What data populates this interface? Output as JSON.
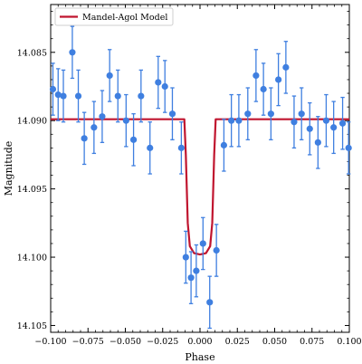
{
  "chart_data": {
    "type": "scatter",
    "xlabel": "Phase",
    "ylabel": "Magnitude",
    "xlim": [
      -0.1,
      0.1
    ],
    "ylim": [
      14.1055,
      14.0815
    ],
    "y_inverted": true,
    "x_ticks": [
      -0.1,
      -0.075,
      -0.05,
      -0.025,
      0.0,
      0.025,
      0.05,
      0.075,
      0.1
    ],
    "x_tick_labels": [
      "−0.100",
      "−0.075",
      "−0.050",
      "−0.025",
      "0.000",
      "0.025",
      "0.050",
      "0.075",
      "0.100"
    ],
    "y_ticks": [
      14.085,
      14.09,
      14.095,
      14.1,
      14.105
    ],
    "y_tick_labels": [
      "14.085",
      "14.090",
      "14.095",
      "14.100",
      "14.105"
    ],
    "legend": {
      "position": "top-left",
      "entries": [
        "Mandel-Agol Model"
      ]
    },
    "colors": {
      "points": "#3f7fe0",
      "model": "#c0152f"
    },
    "series": [
      {
        "name": "Data",
        "kind": "errorbar",
        "points": [
          {
            "x": -0.0985,
            "y": 14.0877,
            "err": 0.0019
          },
          {
            "x": -0.095,
            "y": 14.0881,
            "err": 0.0019
          },
          {
            "x": -0.0915,
            "y": 14.0882,
            "err": 0.0019
          },
          {
            "x": -0.0855,
            "y": 14.085,
            "err": 0.0019
          },
          {
            "x": -0.0815,
            "y": 14.0882,
            "err": 0.0019
          },
          {
            "x": -0.0775,
            "y": 14.0913,
            "err": 0.0019
          },
          {
            "x": -0.071,
            "y": 14.0905,
            "err": 0.0019
          },
          {
            "x": -0.0655,
            "y": 14.0897,
            "err": 0.0019
          },
          {
            "x": -0.0605,
            "y": 14.0867,
            "err": 0.0019
          },
          {
            "x": -0.055,
            "y": 14.0882,
            "err": 0.0019
          },
          {
            "x": -0.0495,
            "y": 14.09,
            "err": 0.0019
          },
          {
            "x": -0.0445,
            "y": 14.0914,
            "err": 0.0019
          },
          {
            "x": -0.0395,
            "y": 14.0882,
            "err": 0.0019
          },
          {
            "x": -0.0335,
            "y": 14.092,
            "err": 0.0019
          },
          {
            "x": -0.028,
            "y": 14.0872,
            "err": 0.0019
          },
          {
            "x": -0.0235,
            "y": 14.0875,
            "err": 0.0019
          },
          {
            "x": -0.0185,
            "y": 14.0895,
            "err": 0.0019
          },
          {
            "x": -0.0125,
            "y": 14.092,
            "err": 0.0019
          },
          {
            "x": -0.0095,
            "y": 14.1,
            "err": 0.0019
          },
          {
            "x": -0.006,
            "y": 14.1015,
            "err": 0.0019
          },
          {
            "x": -0.0025,
            "y": 14.101,
            "err": 0.0019
          },
          {
            "x": 0.002,
            "y": 14.099,
            "err": 0.0019
          },
          {
            "x": 0.0065,
            "y": 14.1033,
            "err": 0.0019
          },
          {
            "x": 0.011,
            "y": 14.0995,
            "err": 0.0019
          },
          {
            "x": 0.016,
            "y": 14.0918,
            "err": 0.0019
          },
          {
            "x": 0.021,
            "y": 14.09,
            "err": 0.0019
          },
          {
            "x": 0.026,
            "y": 14.09,
            "err": 0.0019
          },
          {
            "x": 0.032,
            "y": 14.0895,
            "err": 0.0019
          },
          {
            "x": 0.0375,
            "y": 14.0867,
            "err": 0.0019
          },
          {
            "x": 0.0425,
            "y": 14.0877,
            "err": 0.0019
          },
          {
            "x": 0.0475,
            "y": 14.0895,
            "err": 0.0019
          },
          {
            "x": 0.0525,
            "y": 14.087,
            "err": 0.0019
          },
          {
            "x": 0.0575,
            "y": 14.0861,
            "err": 0.0019
          },
          {
            "x": 0.063,
            "y": 14.0901,
            "err": 0.0019
          },
          {
            "x": 0.068,
            "y": 14.0895,
            "err": 0.0019
          },
          {
            "x": 0.0735,
            "y": 14.0906,
            "err": 0.0019
          },
          {
            "x": 0.079,
            "y": 14.0916,
            "err": 0.0019
          },
          {
            "x": 0.0845,
            "y": 14.09,
            "err": 0.0019
          },
          {
            "x": 0.0895,
            "y": 14.0905,
            "err": 0.0019
          },
          {
            "x": 0.0955,
            "y": 14.0902,
            "err": 0.0019
          },
          {
            "x": 0.0995,
            "y": 14.092,
            "err": 0.0019
          }
        ]
      },
      {
        "name": "Mandel-Agol Model",
        "kind": "line",
        "points": [
          {
            "x": -0.1,
            "y": 14.0899
          },
          {
            "x": -0.0105,
            "y": 14.0899
          },
          {
            "x": -0.0095,
            "y": 14.0925
          },
          {
            "x": -0.0082,
            "y": 14.0975
          },
          {
            "x": -0.0068,
            "y": 14.0992
          },
          {
            "x": -0.004,
            "y": 14.0997
          },
          {
            "x": 0.0,
            "y": 14.0998
          },
          {
            "x": 0.004,
            "y": 14.0997
          },
          {
            "x": 0.0068,
            "y": 14.0992
          },
          {
            "x": 0.0082,
            "y": 14.0975
          },
          {
            "x": 0.0095,
            "y": 14.0925
          },
          {
            "x": 0.0105,
            "y": 14.0899
          },
          {
            "x": 0.1,
            "y": 14.0899
          }
        ]
      }
    ]
  }
}
